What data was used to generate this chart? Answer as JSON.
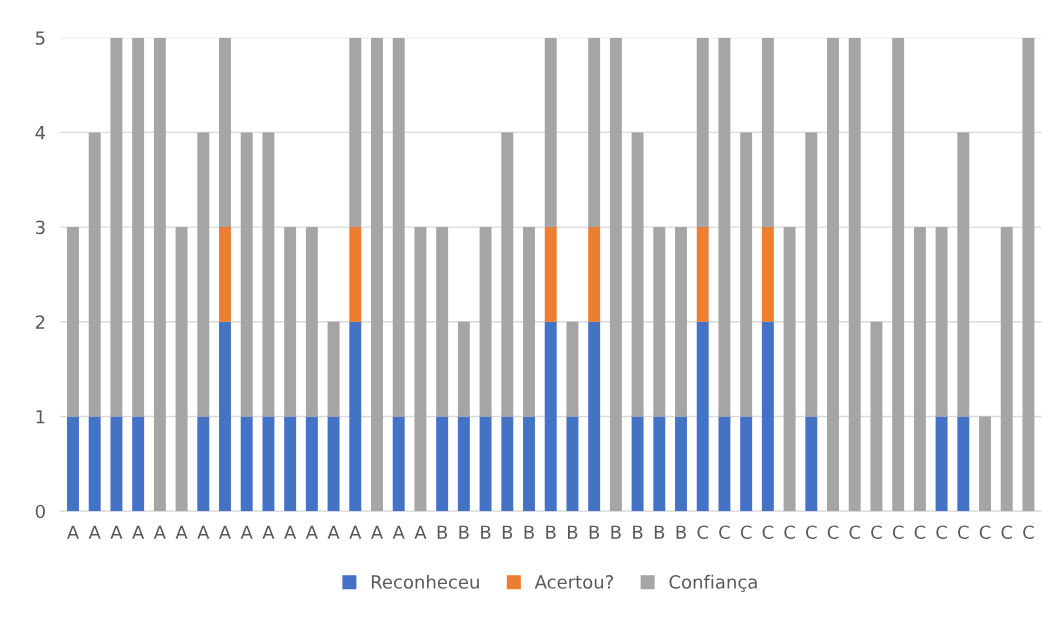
{
  "chart_data": {
    "type": "bar",
    "stacked": true,
    "categories": [
      "A",
      "A",
      "A",
      "A",
      "A",
      "A",
      "A",
      "A",
      "A",
      "A",
      "A",
      "A",
      "A",
      "A",
      "A",
      "A",
      "A",
      "B",
      "B",
      "B",
      "B",
      "B",
      "B",
      "B",
      "B",
      "B",
      "B",
      "B",
      "B",
      "C",
      "C",
      "C",
      "C",
      "C",
      "C",
      "C",
      "C",
      "C",
      "C",
      "C",
      "C",
      "C",
      "C",
      "C",
      "C"
    ],
    "series": [
      {
        "name": "Reconheceu",
        "color": "#4472c4",
        "values": [
          1,
          1,
          1,
          1,
          0,
          0,
          1,
          2,
          1,
          1,
          1,
          1,
          1,
          2,
          0,
          1,
          0,
          1,
          1,
          1,
          1,
          1,
          2,
          1,
          2,
          0,
          1,
          1,
          1,
          2,
          1,
          1,
          2,
          0,
          1,
          0,
          0,
          0,
          0,
          0,
          1,
          1,
          0,
          0,
          0
        ]
      },
      {
        "name": "Acertou?",
        "color": "#ed7d31",
        "values": [
          0,
          0,
          0,
          0,
          0,
          0,
          0,
          1,
          0,
          0,
          0,
          0,
          0,
          1,
          0,
          0,
          0,
          0,
          0,
          0,
          0,
          0,
          1,
          0,
          1,
          0,
          0,
          0,
          0,
          1,
          0,
          0,
          1,
          0,
          0,
          0,
          0,
          0,
          0,
          0,
          0,
          0,
          0,
          0,
          0
        ]
      },
      {
        "name": "Confiança",
        "color": "#a5a5a5",
        "values": [
          2,
          3,
          4,
          4,
          5,
          3,
          3,
          2,
          3,
          3,
          2,
          2,
          1,
          2,
          5,
          4,
          3,
          2,
          1,
          2,
          3,
          2,
          2,
          1,
          2,
          5,
          3,
          2,
          2,
          2,
          4,
          3,
          2,
          3,
          3,
          5,
          5,
          2,
          5,
          3,
          2,
          3,
          1,
          3,
          5
        ]
      }
    ],
    "ylim": [
      0,
      5
    ],
    "yticks": [
      0,
      1,
      2,
      3,
      4,
      5
    ],
    "grid": "y",
    "legend": "bottom"
  }
}
